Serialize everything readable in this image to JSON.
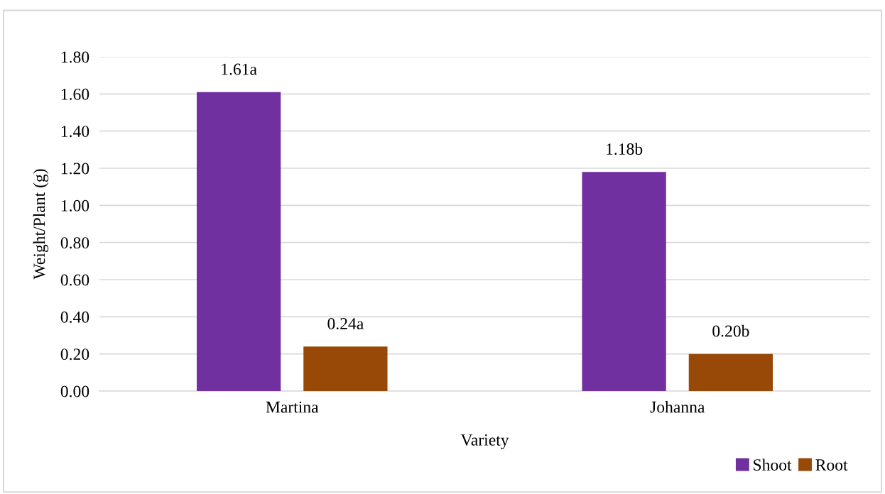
{
  "chart_data": {
    "type": "bar",
    "xlabel": "Variety",
    "ylabel": "Weight/Plant (g)",
    "categories": [
      "Martina",
      "Johanna"
    ],
    "series": [
      {
        "name": "Shoot",
        "color": "#7030a0",
        "values": [
          1.61,
          1.18
        ],
        "value_labels": [
          "1.61a",
          "1.18b"
        ]
      },
      {
        "name": "Root",
        "color": "#984807",
        "values": [
          0.24,
          0.2
        ],
        "value_labels": [
          "0.24a",
          "0.20b"
        ]
      }
    ],
    "ylim": [
      0,
      1.8
    ],
    "yticks": [
      {
        "value": 0,
        "label": "0.00"
      },
      {
        "value": 0.2,
        "label": "0.20"
      },
      {
        "value": 0.4,
        "label": "0.40"
      },
      {
        "value": 0.6,
        "label": "0.60"
      },
      {
        "value": 0.8,
        "label": "0.80"
      },
      {
        "value": 1.0,
        "label": "1.00"
      },
      {
        "value": 1.2,
        "label": "1.20"
      },
      {
        "value": 1.4,
        "label": "1.40"
      },
      {
        "value": 1.6,
        "label": "1.60"
      },
      {
        "value": 1.8,
        "label": "1.80"
      }
    ],
    "grid": "y",
    "legend": "bottom right"
  }
}
